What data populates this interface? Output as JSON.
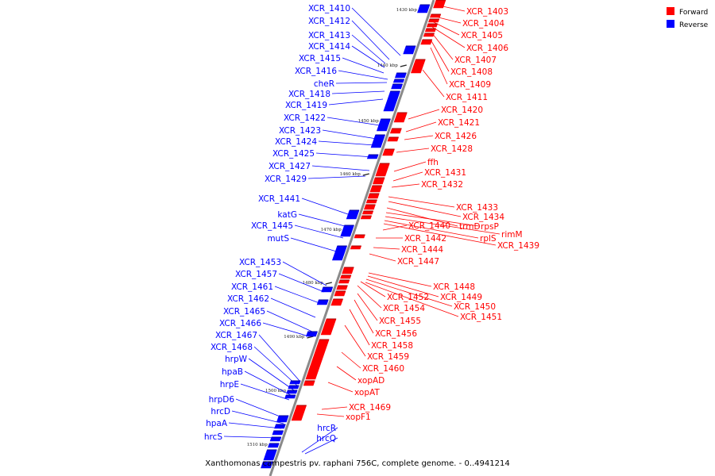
{
  "caption": "Xanthomonas campestris pv. raphani 756C, complete genome. - 0..4941214",
  "legend": [
    {
      "label": "Forward",
      "color": "#ff0000"
    },
    {
      "label": "Reverse",
      "color": "#0000ff"
    }
  ],
  "colors": {
    "forward": "#ff0000",
    "reverse": "#0000ff",
    "axis": "#888888"
  },
  "ticks": [
    "1430 kbp",
    "1440 kbp",
    "1450 kbp",
    "1460 kbp",
    "1470 kbp",
    "1480 kbp",
    "1490 kbp",
    "1500 kbp",
    "1510 kbp"
  ],
  "reverse_labels": [
    "XCR_1410",
    "XCR_1412",
    "XCR_1413",
    "XCR_1414",
    "XCR_1415",
    "XCR_1416",
    "cheR",
    "XCR_1418",
    "XCR_1419",
    "XCR_1422",
    "XCR_1423",
    "XCR_1424",
    "XCR_1425",
    "XCR_1427",
    "XCR_1429",
    "XCR_1441",
    "katG",
    "XCR_1445",
    "mutS",
    "XCR_1453",
    "XCR_1457",
    "XCR_1461",
    "XCR_1462",
    "XCR_1465",
    "XCR_1466",
    "XCR_1467",
    "XCR_1468",
    "hrpW",
    "hpaB",
    "hrpE",
    "hrpD6",
    "hrcD",
    "hpaA",
    "hrcS",
    "hrcR",
    "hrcQ"
  ],
  "forward_labels": [
    "XCR_1403",
    "XCR_1404",
    "XCR_1405",
    "XCR_1406",
    "XCR_1407",
    "XCR_1408",
    "XCR_1409",
    "XCR_1411",
    "XCR_1420",
    "XCR_1421",
    "XCR_1426",
    "XCR_1428",
    "ffh",
    "XCR_1431",
    "XCR_1432",
    "XCR_1433",
    "XCR_1434",
    "trmD",
    "rpsP",
    "rimM",
    "rplS",
    "XCR_1439",
    "XCR_1440",
    "XCR_1442",
    "XCR_1444",
    "XCR_1447",
    "XCR_1448",
    "XCR_1449",
    "XCR_1452",
    "XCR_1450",
    "XCR_1454",
    "XCR_1451",
    "XCR_1455",
    "XCR_1456",
    "XCR_1458",
    "XCR_1459",
    "XCR_1460",
    "xopAD",
    "xopAT",
    "XCR_1469",
    "xopF1"
  ]
}
